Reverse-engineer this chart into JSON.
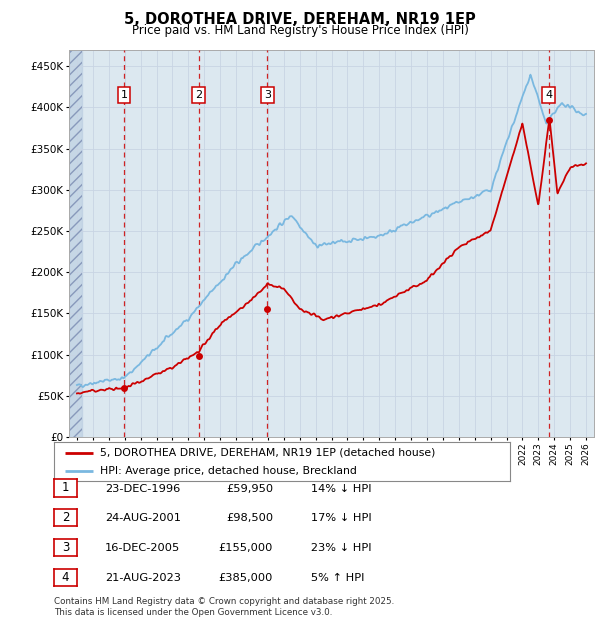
{
  "title": "5, DOROTHEA DRIVE, DEREHAM, NR19 1EP",
  "subtitle": "Price paid vs. HM Land Registry's House Price Index (HPI)",
  "hpi_label": "HPI: Average price, detached house, Breckland",
  "price_label": "5, DOROTHEA DRIVE, DEREHAM, NR19 1EP (detached house)",
  "footer": "Contains HM Land Registry data © Crown copyright and database right 2025.\nThis data is licensed under the Open Government Licence v3.0.",
  "ylim": [
    0,
    470000
  ],
  "yticks": [
    0,
    50000,
    100000,
    150000,
    200000,
    250000,
    300000,
    350000,
    400000,
    450000
  ],
  "ytick_labels": [
    "£0",
    "£50K",
    "£100K",
    "£150K",
    "£200K",
    "£250K",
    "£300K",
    "£350K",
    "£400K",
    "£450K"
  ],
  "xlim_start": 1993.5,
  "xlim_end": 2026.5,
  "xtick_years": [
    1994,
    1995,
    1996,
    1997,
    1998,
    1999,
    2000,
    2001,
    2002,
    2003,
    2004,
    2005,
    2006,
    2007,
    2008,
    2009,
    2010,
    2011,
    2012,
    2013,
    2014,
    2015,
    2016,
    2017,
    2018,
    2019,
    2020,
    2021,
    2022,
    2023,
    2024,
    2025,
    2026
  ],
  "transactions": [
    {
      "num": 1,
      "date": "23-DEC-1996",
      "price": 59950,
      "year": 1996.97,
      "pct": "14%",
      "dir": "↓"
    },
    {
      "num": 2,
      "date": "24-AUG-2001",
      "price": 98500,
      "year": 2001.65,
      "pct": "17%",
      "dir": "↓"
    },
    {
      "num": 3,
      "date": "16-DEC-2005",
      "price": 155000,
      "year": 2005.96,
      "pct": "23%",
      "dir": "↓"
    },
    {
      "num": 4,
      "date": "21-AUG-2023",
      "price": 385000,
      "year": 2023.65,
      "pct": "5%",
      "dir": "↑"
    }
  ],
  "hpi_color": "#7ab8e0",
  "price_color": "#cc0000",
  "vline_color": "#cc0000",
  "grid_color": "#c8d4e4",
  "plot_bg": "#dce8f0"
}
